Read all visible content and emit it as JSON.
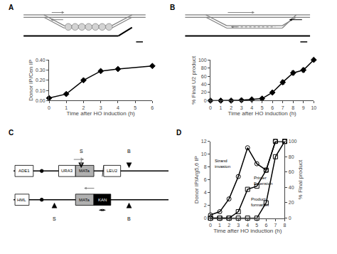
{
  "chart_data": [
    {
      "type": "line",
      "title": "A",
      "x": [
        0,
        1,
        2,
        3,
        4,
        6
      ],
      "values": [
        0.025,
        0.065,
        0.2,
        0.29,
        0.31,
        0.34
      ],
      "color": "black",
      "marker": "diamond",
      "xlabel": "Time after HO induction (h)",
      "ylabel": "Donor IP/Cen IP",
      "xlim": [
        0,
        6
      ],
      "ylim": [
        0,
        0.4
      ],
      "xticks": [
        0,
        1,
        2,
        3,
        4,
        5,
        6
      ],
      "yticks": [
        {
          "value": 0.0,
          "label": "0.00"
        },
        {
          "value": 0.1,
          "label": "0.10"
        },
        {
          "value": 0.2,
          "label": "0.20"
        },
        {
          "value": 0.3,
          "label": "0.30"
        },
        {
          "value": 0.4,
          "label": "0.40"
        }
      ],
      "grid": false
    },
    {
      "type": "line",
      "title": "B",
      "x": [
        0,
        1,
        2,
        3,
        4,
        5,
        6,
        7,
        8,
        9,
        10
      ],
      "values": [
        0,
        0,
        0,
        1,
        3,
        5,
        20,
        45,
        68,
        75,
        100
      ],
      "yerr": [
        0,
        0,
        0,
        1,
        2,
        3,
        4,
        5,
        5,
        5,
        0
      ],
      "color": "black",
      "marker": "diamond",
      "xlabel": "Time after HO induction (h)",
      "ylabel": "% Final U2 product",
      "xlim": [
        0,
        10
      ],
      "ylim": [
        0,
        100
      ],
      "xticks": [
        0,
        1,
        2,
        3,
        4,
        5,
        6,
        7,
        8,
        9,
        10
      ],
      "yticks": [
        0,
        20,
        40,
        60,
        80,
        100
      ],
      "grid": false
    },
    {
      "type": "diagram",
      "title": "C",
      "annotations": [
        "ADE1",
        "URA3",
        "MATa",
        "LEU2",
        "S",
        "B",
        "HML",
        "MATa",
        "KAN",
        "S",
        "B"
      ]
    },
    {
      "type": "line",
      "title": "D",
      "x": [
        0,
        1,
        2,
        3,
        4,
        5,
        6,
        7,
        8
      ],
      "series": [
        {
          "values": [
            0.5,
            1.0,
            3.0,
            6.5,
            11.0,
            8.5,
            7.5,
            12.0,
            12.0
          ],
          "color": "black",
          "marker": "circle-open"
        },
        {
          "values": [
            0,
            0,
            0,
            1.0,
            4.5,
            5.0,
            7.5,
            12.0,
            12.0
          ],
          "color": "black",
          "marker": "square-open"
        },
        {
          "values": [
            0,
            0,
            0,
            0,
            0,
            0,
            20,
            80,
            100
          ],
          "color": "black",
          "marker": "square-open",
          "axis": "y2"
        }
      ],
      "xlabel": "Time after HO induction (h)",
      "ylabel": "Donor IP/Arg5,6 IP",
      "y2label": "% Final product",
      "xlim": [
        0,
        8
      ],
      "ylim": [
        0,
        12
      ],
      "y2lim": [
        0,
        100
      ],
      "xticks": [
        0,
        1,
        2,
        3,
        4,
        5,
        6,
        7,
        8
      ],
      "yticks": [
        0,
        2,
        4,
        6,
        8,
        10,
        12
      ],
      "y2ticks": [
        0,
        20,
        40,
        60,
        80,
        100
      ],
      "annotations": [
        {
          "text": "Strand\ninvasion",
          "x": 0.3,
          "y": 9.5
        },
        {
          "text": "Primer\nExtension",
          "x": 4.5,
          "y": 6.8
        },
        {
          "text": "Product\nformation",
          "x": 4.2,
          "y": 3.5
        }
      ],
      "grid": false
    }
  ]
}
